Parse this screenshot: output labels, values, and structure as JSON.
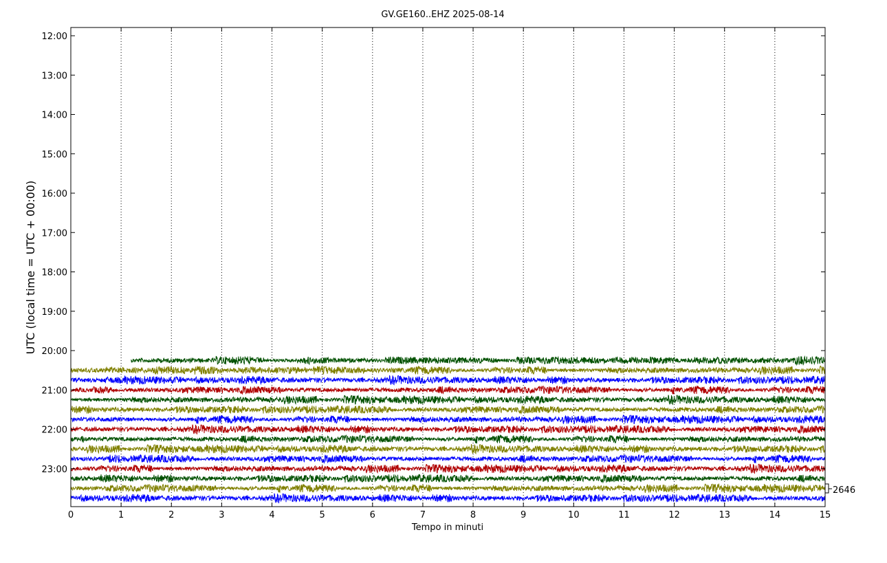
{
  "chart_data": {
    "type": "line",
    "title": "GV.GE160..EHZ 2025-08-14",
    "xlabel": "Tempo in minuti",
    "ylabel": "UTC (local time = UTC + 00:00)",
    "x_ticks": [
      "0",
      "1",
      "2",
      "3",
      "4",
      "5",
      "6",
      "7",
      "8",
      "9",
      "10",
      "11",
      "12",
      "13",
      "14",
      "15"
    ],
    "xlim": [
      0,
      15
    ],
    "y_ticks": [
      "12:00",
      "13:00",
      "14:00",
      "15:00",
      "16:00",
      "17:00",
      "18:00",
      "19:00",
      "20:00",
      "21:00",
      "22:00",
      "23:00"
    ],
    "grid": "vertical dotted",
    "scale_label": "2646",
    "trace_colors": [
      "#0000ff",
      "#b00000",
      "#005000",
      "#808000"
    ],
    "traces": [
      {
        "start": "20:15",
        "x_start": 1.2,
        "color": "#005000"
      },
      {
        "start": "20:30",
        "x_start": 0,
        "color": "#808000"
      },
      {
        "start": "20:45",
        "x_start": 0,
        "color": "#0000ff"
      },
      {
        "start": "21:00",
        "x_start": 0,
        "color": "#b00000"
      },
      {
        "start": "21:15",
        "x_start": 0,
        "color": "#005000"
      },
      {
        "start": "21:30",
        "x_start": 0,
        "color": "#808000"
      },
      {
        "start": "21:45",
        "x_start": 0,
        "color": "#0000ff"
      },
      {
        "start": "22:00",
        "x_start": 0,
        "color": "#b00000"
      },
      {
        "start": "22:15",
        "x_start": 0,
        "color": "#005000"
      },
      {
        "start": "22:30",
        "x_start": 0,
        "color": "#808000"
      },
      {
        "start": "22:45",
        "x_start": 0,
        "color": "#0000ff"
      },
      {
        "start": "23:00",
        "x_start": 0,
        "color": "#b00000"
      },
      {
        "start": "23:15",
        "x_start": 0,
        "color": "#005000"
      },
      {
        "start": "23:30",
        "x_start": 0,
        "color": "#808000"
      },
      {
        "start": "23:45",
        "x_start": 0,
        "color": "#0000ff"
      }
    ]
  }
}
